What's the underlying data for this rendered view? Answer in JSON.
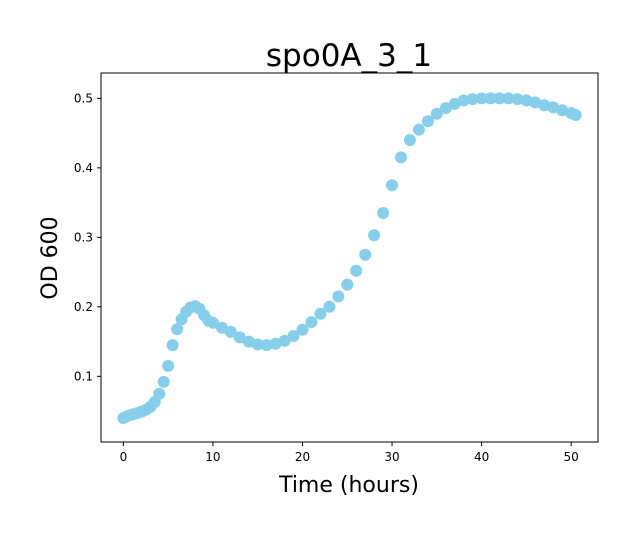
{
  "chart_data": {
    "type": "scatter",
    "title": "spo0A_3_1",
    "xlabel": "Time (hours)",
    "ylabel": "OD 600",
    "xlim": [
      -2.5,
      53.0
    ],
    "ylim": [
      0.0055,
      0.5365
    ],
    "xticks": [
      0,
      10,
      20,
      30,
      40,
      50
    ],
    "yticks": [
      0.1,
      0.2,
      0.3,
      0.4,
      0.5
    ],
    "grid": false,
    "marker_color": "#87ceeb",
    "series": [
      {
        "x": [
          0.0,
          0.5,
          1.0,
          1.5,
          2.0,
          2.5,
          3.0,
          3.5,
          4.0,
          4.5,
          5.0,
          5.5,
          6.0,
          6.5,
          7.0,
          7.5,
          8.0,
          8.5,
          9.0,
          9.5,
          10.0,
          11.0,
          12.0,
          13.0,
          14.0,
          15.0,
          16.0,
          17.0,
          18.0,
          19.0,
          20.0,
          21.0,
          22.0,
          23.0,
          24.0,
          25.0,
          26.0,
          27.0,
          28.0,
          29.0,
          30.0,
          31.0,
          32.0,
          33.0,
          34.0,
          35.0,
          36.0,
          37.0,
          38.0,
          39.0,
          40.0,
          41.0,
          42.0,
          43.0,
          44.0,
          45.0,
          46.0,
          47.0,
          48.0,
          49.0,
          50.0,
          50.5
        ],
        "y": [
          0.04,
          0.043,
          0.045,
          0.047,
          0.049,
          0.052,
          0.056,
          0.063,
          0.075,
          0.092,
          0.115,
          0.145,
          0.168,
          0.182,
          0.193,
          0.199,
          0.201,
          0.197,
          0.188,
          0.18,
          0.177,
          0.17,
          0.164,
          0.156,
          0.15,
          0.146,
          0.145,
          0.147,
          0.151,
          0.158,
          0.167,
          0.178,
          0.19,
          0.2,
          0.215,
          0.232,
          0.252,
          0.275,
          0.303,
          0.335,
          0.375,
          0.415,
          0.44,
          0.455,
          0.467,
          0.478,
          0.486,
          0.492,
          0.497,
          0.499,
          0.5,
          0.5,
          0.5,
          0.5,
          0.499,
          0.497,
          0.494,
          0.49,
          0.487,
          0.483,
          0.479,
          0.476
        ]
      }
    ]
  }
}
